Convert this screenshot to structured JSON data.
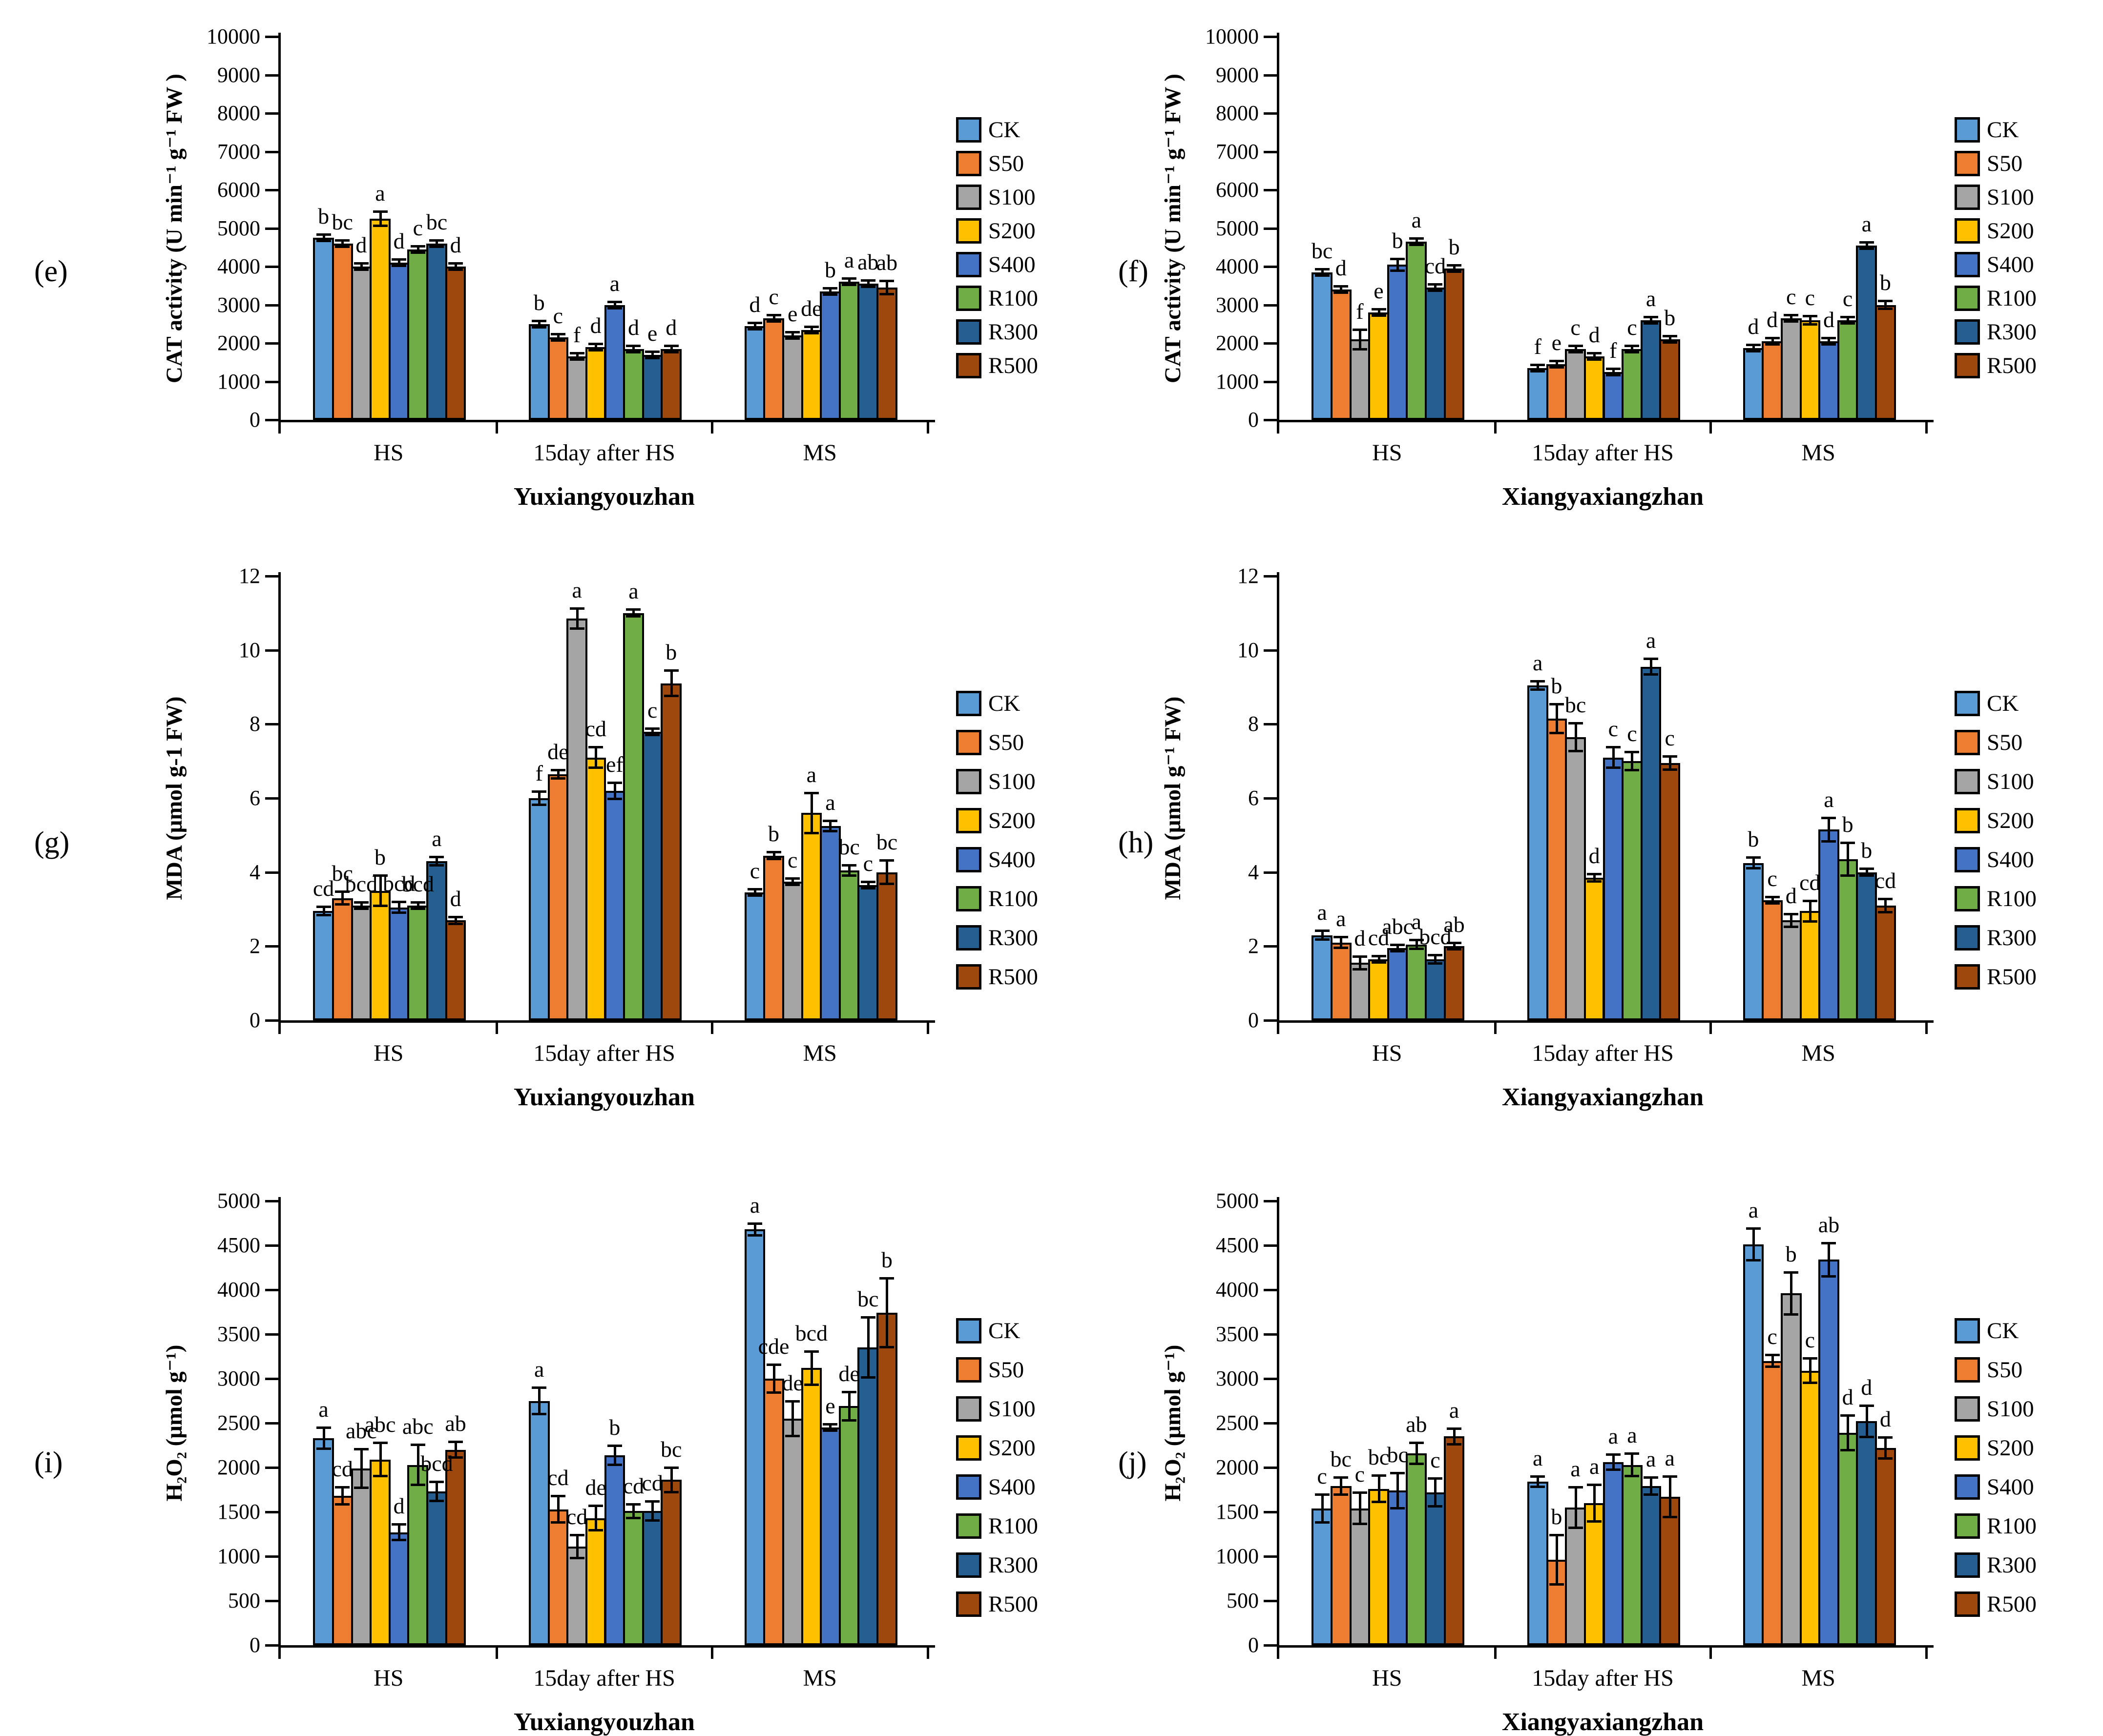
{
  "figure": {
    "series": [
      "CK",
      "S50",
      "S100",
      "S200",
      "S400",
      "R100",
      "R300",
      "R500"
    ],
    "series_colors": [
      "#5B9BD5",
      "#ED7D31",
      "#A5A5A5",
      "#FFC000",
      "#4472C4",
      "#70AD47",
      "#255E91",
      "#9E480E"
    ],
    "group_labels": [
      "HS",
      "15day after HS",
      "MS"
    ],
    "legend_position": "right"
  },
  "chart_data": [
    {
      "type": "bar",
      "panel_label": "(e)",
      "title": "Yuxiangyouzhan",
      "ylabel": "CAT activity  (U min⁻¹ g⁻¹ FW )",
      "ylim": [
        0,
        10000
      ],
      "ystep": 1000,
      "grid": false,
      "groups": [
        {
          "name": "HS",
          "values": [
            4750,
            4600,
            4000,
            5250,
            4100,
            4450,
            4600,
            4000
          ],
          "errors": [
            60,
            90,
            40,
            190,
            90,
            90,
            60,
            50
          ],
          "letters": [
            "b",
            "bc",
            "d",
            "a",
            "d",
            "c",
            "bc",
            "d"
          ]
        },
        {
          "name": "15day after HS",
          "values": [
            2500,
            2150,
            1650,
            1900,
            3000,
            1850,
            1700,
            1850
          ],
          "errors": [
            50,
            40,
            40,
            40,
            40,
            50,
            40,
            30
          ],
          "letters": [
            "b",
            "c",
            "f",
            "d",
            "a",
            "d",
            "e",
            "d"
          ]
        },
        {
          "name": "MS",
          "values": [
            2450,
            2650,
            2200,
            2350,
            3350,
            3600,
            3550,
            3450
          ],
          "errors": [
            40,
            60,
            40,
            50,
            50,
            90,
            50,
            180
          ],
          "letters": [
            "d",
            "c",
            "e",
            "de",
            "b",
            "a",
            "ab",
            "ab"
          ]
        }
      ]
    },
    {
      "type": "bar",
      "panel_label": "(f)",
      "title": "Xiangyaxiangzhan",
      "ylabel": "CAT activity  (U min⁻¹ g⁻¹ FW )",
      "ylim": [
        0,
        10000
      ],
      "ystep": 1000,
      "grid": false,
      "groups": [
        {
          "name": "HS",
          "values": [
            3850,
            3400,
            2100,
            2800,
            4050,
            4650,
            3450,
            3950
          ],
          "errors": [
            60,
            90,
            260,
            90,
            160,
            50,
            60,
            90
          ],
          "letters": [
            "bc",
            "d",
            "f",
            "e",
            "b",
            "a",
            "cd",
            "b"
          ]
        },
        {
          "name": "15day after HS",
          "values": [
            1350,
            1450,
            1850,
            1650,
            1250,
            1850,
            2600,
            2100
          ],
          "errors": [
            50,
            40,
            40,
            40,
            70,
            50,
            50,
            70
          ],
          "letters": [
            "f",
            "e",
            "c",
            "d",
            "f",
            "c",
            "a",
            "b"
          ]
        },
        {
          "name": "MS",
          "values": [
            1870,
            2050,
            2650,
            2600,
            2050,
            2600,
            4550,
            3000
          ],
          "errors": [
            40,
            40,
            60,
            110,
            50,
            50,
            90,
            110
          ],
          "letters": [
            "d",
            "d",
            "c",
            "c",
            "d",
            "c",
            "a",
            "b"
          ]
        }
      ]
    },
    {
      "type": "bar",
      "panel_label": "(g)",
      "title": "Yuxiangyouzhan",
      "ylabel": "MDA (μmol g-1 FW)",
      "ylim": [
        0,
        12
      ],
      "ystep": 2,
      "grid": false,
      "groups": [
        {
          "name": "HS",
          "values": [
            2.95,
            3.3,
            3.1,
            3.5,
            3.05,
            3.1,
            4.3,
            2.7
          ],
          "errors": [
            0.12,
            0.18,
            0.08,
            0.42,
            0.15,
            0.05,
            0.12,
            0.1
          ],
          "letters": [
            "cd",
            "bc",
            "bcd",
            "b",
            "bcd",
            "bcd",
            "a",
            "d"
          ]
        },
        {
          "name": "15day after HS",
          "values": [
            6.0,
            6.65,
            10.85,
            7.1,
            6.2,
            11.0,
            7.8,
            9.1
          ],
          "errors": [
            0.18,
            0.12,
            0.28,
            0.28,
            0.22,
            0.1,
            0.08,
            0.35
          ],
          "letters": [
            "f",
            "de",
            "a",
            "cd",
            "ef",
            "a",
            "c",
            "b"
          ]
        },
        {
          "name": "MS",
          "values": [
            3.45,
            4.45,
            3.75,
            5.6,
            5.25,
            4.05,
            3.65,
            4.0
          ],
          "errors": [
            0.05,
            0.1,
            0.05,
            0.55,
            0.15,
            0.15,
            0.05,
            0.32
          ],
          "letters": [
            "c",
            "b",
            "c",
            "a",
            "a",
            "bc",
            "c",
            "bc"
          ]
        }
      ]
    },
    {
      "type": "bar",
      "panel_label": "(h)",
      "title": "Xiangyaxiangzhan",
      "ylabel": "MDA (μmol g⁻¹ FW)",
      "ylim": [
        0,
        12
      ],
      "ystep": 2,
      "grid": false,
      "groups": [
        {
          "name": "HS",
          "values": [
            2.3,
            2.1,
            1.55,
            1.65,
            1.95,
            2.05,
            1.65,
            2.0
          ],
          "errors": [
            0.12,
            0.15,
            0.18,
            0.08,
            0.08,
            0.12,
            0.12,
            0.07
          ],
          "letters": [
            "a",
            "a",
            "d",
            "cd",
            "abc",
            "a",
            "bcd",
            "ab"
          ]
        },
        {
          "name": "15day after HS",
          "values": [
            9.05,
            8.15,
            7.65,
            3.85,
            7.1,
            7.0,
            9.55,
            6.95
          ],
          "errors": [
            0.12,
            0.4,
            0.38,
            0.1,
            0.28,
            0.25,
            0.22,
            0.18
          ],
          "letters": [
            "a",
            "b",
            "bc",
            "d",
            "c",
            "c",
            "a",
            "c"
          ]
        },
        {
          "name": "MS",
          "values": [
            4.25,
            3.25,
            2.7,
            2.95,
            5.15,
            4.35,
            4.0,
            3.1
          ],
          "errors": [
            0.15,
            0.05,
            0.18,
            0.28,
            0.32,
            0.45,
            0.1,
            0.18
          ],
          "letters": [
            "b",
            "c",
            "d",
            "cd",
            "a",
            "b",
            "b",
            "cd"
          ]
        }
      ]
    },
    {
      "type": "bar",
      "panel_label": "(i)",
      "title": "Yuxiangyouzhan",
      "ylabel": "H₂O₂  (μmol g⁻¹)",
      "ylim": [
        0,
        5000
      ],
      "ystep": 500,
      "grid": false,
      "groups": [
        {
          "name": "HS",
          "values": [
            2330,
            1680,
            1990,
            2090,
            1270,
            2030,
            1730,
            2200
          ],
          "errors": [
            120,
            100,
            220,
            190,
            90,
            230,
            110,
            90
          ],
          "letters": [
            "a",
            "cd",
            "abc",
            "abc",
            "d",
            "abc",
            "bcd",
            "ab"
          ]
        },
        {
          "name": "15day after HS",
          "values": [
            2750,
            1530,
            1110,
            1430,
            2140,
            1510,
            1510,
            1860
          ],
          "errors": [
            150,
            150,
            130,
            140,
            110,
            80,
            110,
            140
          ],
          "letters": [
            "a",
            "cd",
            "cd",
            "de",
            "b",
            "cd",
            "cd",
            "bc"
          ]
        },
        {
          "name": "MS",
          "values": [
            4680,
            3000,
            2550,
            3120,
            2450,
            2690,
            3350,
            3740
          ],
          "errors": [
            70,
            160,
            200,
            190,
            30,
            160,
            340,
            390
          ],
          "letters": [
            "a",
            "cde",
            "de",
            "bcd",
            "e",
            "de",
            "bc",
            "b"
          ]
        }
      ]
    },
    {
      "type": "bar",
      "panel_label": "(j)",
      "title": "Xiangyaxiangzhan",
      "ylabel": "H₂O₂  (μmol g⁻¹)",
      "ylim": [
        0,
        5000
      ],
      "ystep": 500,
      "grid": false,
      "groups": [
        {
          "name": "HS",
          "values": [
            1540,
            1790,
            1540,
            1760,
            1740,
            2160,
            1720,
            2350
          ],
          "errors": [
            160,
            100,
            180,
            150,
            200,
            120,
            160,
            90
          ],
          "letters": [
            "c",
            "bc",
            "c",
            "bc",
            "bc",
            "ab",
            "c",
            "a"
          ]
        },
        {
          "name": "15day after HS",
          "values": [
            1840,
            960,
            1550,
            1600,
            2060,
            2030,
            1790,
            1670
          ],
          "errors": [
            60,
            280,
            230,
            210,
            90,
            130,
            100,
            230
          ],
          "letters": [
            "a",
            "b",
            "a",
            "a",
            "a",
            "a",
            "a",
            "a"
          ]
        },
        {
          "name": "MS",
          "values": [
            4510,
            3200,
            3960,
            3090,
            4340,
            2390,
            2520,
            2220
          ],
          "errors": [
            180,
            70,
            240,
            140,
            190,
            200,
            180,
            120
          ],
          "letters": [
            "a",
            "c",
            "b",
            "c",
            "ab",
            "d",
            "d",
            "d"
          ]
        }
      ]
    }
  ]
}
